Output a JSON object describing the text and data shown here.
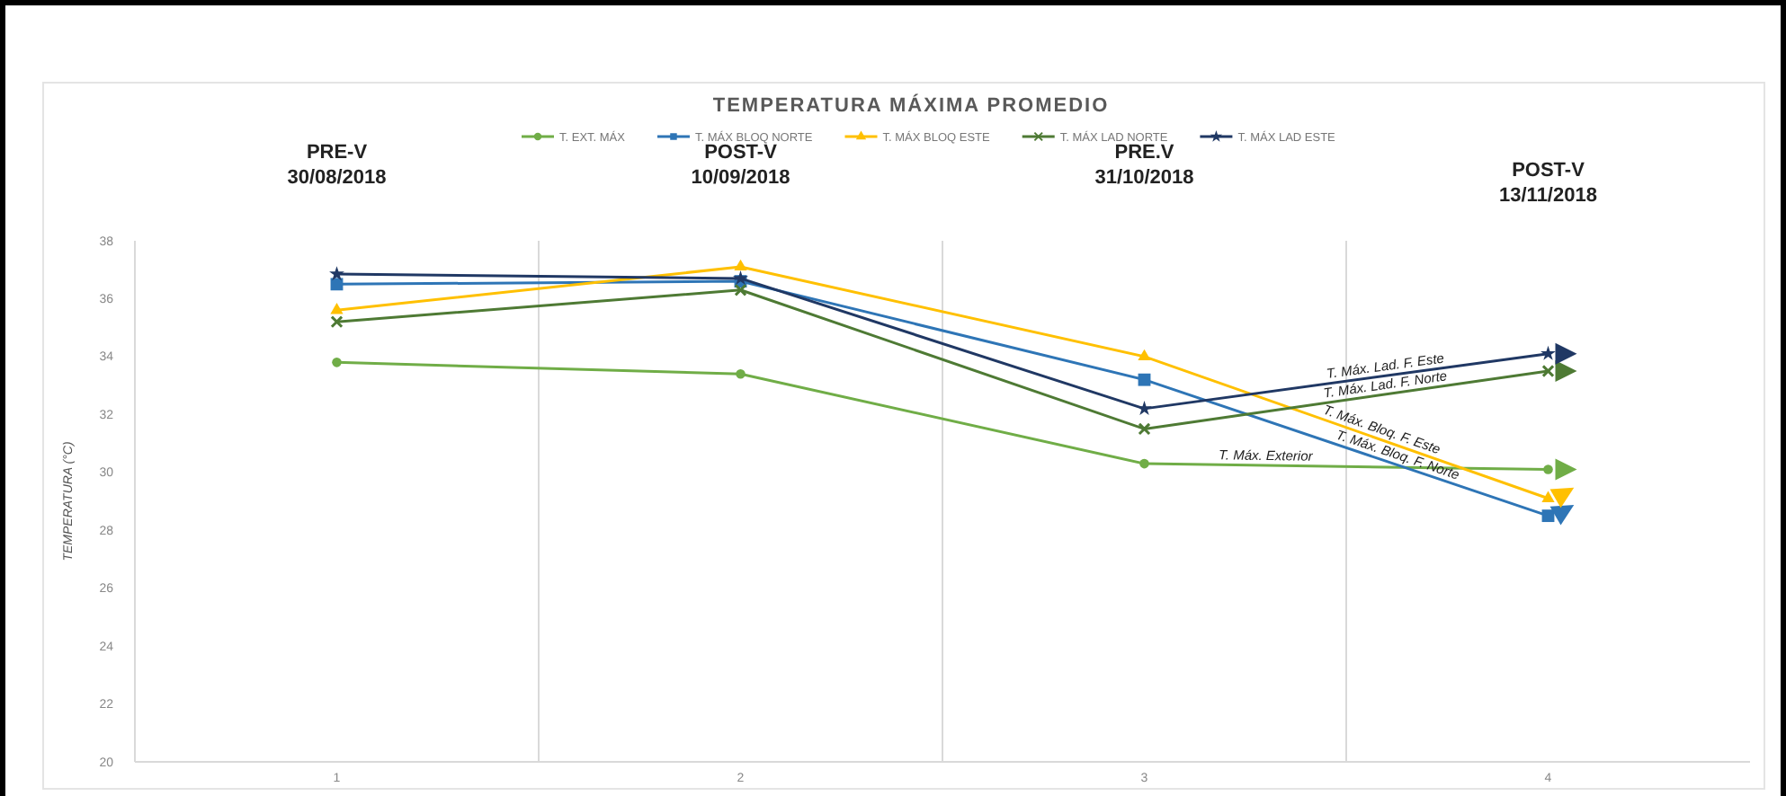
{
  "chart_data": {
    "type": "line",
    "title": "TEMPERATURA MÁXIMA PROMEDIO",
    "ylabel": "TEMPERATURA (°C)",
    "categories": [
      "1",
      "2",
      "3",
      "4"
    ],
    "series": [
      {
        "name": "T. EXT. MÁX",
        "color": "#70ad47",
        "marker": "circle",
        "values": [
          33.8,
          33.4,
          30.3,
          30.1
        ]
      },
      {
        "name": "T. MÁX BLOQ NORTE",
        "color": "#2e75b6",
        "marker": "square",
        "values": [
          36.5,
          36.6,
          33.2,
          28.5
        ]
      },
      {
        "name": "T. MÁX BLOQ ESTE",
        "color": "#ffc000",
        "marker": "triangle",
        "values": [
          35.6,
          37.1,
          34.0,
          29.1
        ]
      },
      {
        "name": "T. MÁX LAD NORTE",
        "color": "#4e7a34",
        "marker": "cross",
        "values": [
          35.2,
          36.3,
          31.5,
          33.5
        ]
      },
      {
        "name": "T. MÁX LAD ESTE",
        "color": "#203864",
        "marker": "star",
        "values": [
          36.85,
          36.7,
          32.2,
          34.1
        ]
      }
    ],
    "ylim": [
      20,
      38
    ],
    "yticks": [
      20,
      22,
      24,
      26,
      28,
      30,
      32,
      34,
      36,
      38
    ],
    "grid": "x",
    "legend": "top",
    "annotations": [
      "PRE-V\n30/08/2018",
      "POST-V\n10/09/2018",
      "PRE.V\n31/10/2018",
      "POST-V\n13/11/2018",
      "T. Máx. Exterior",
      "T. Máx. Bloq. F. Norte",
      "T. Máx. Bloq. F. Este",
      "T. Máx. Lad. F. Norte",
      "T. Máx. Lad. F. Este"
    ]
  }
}
